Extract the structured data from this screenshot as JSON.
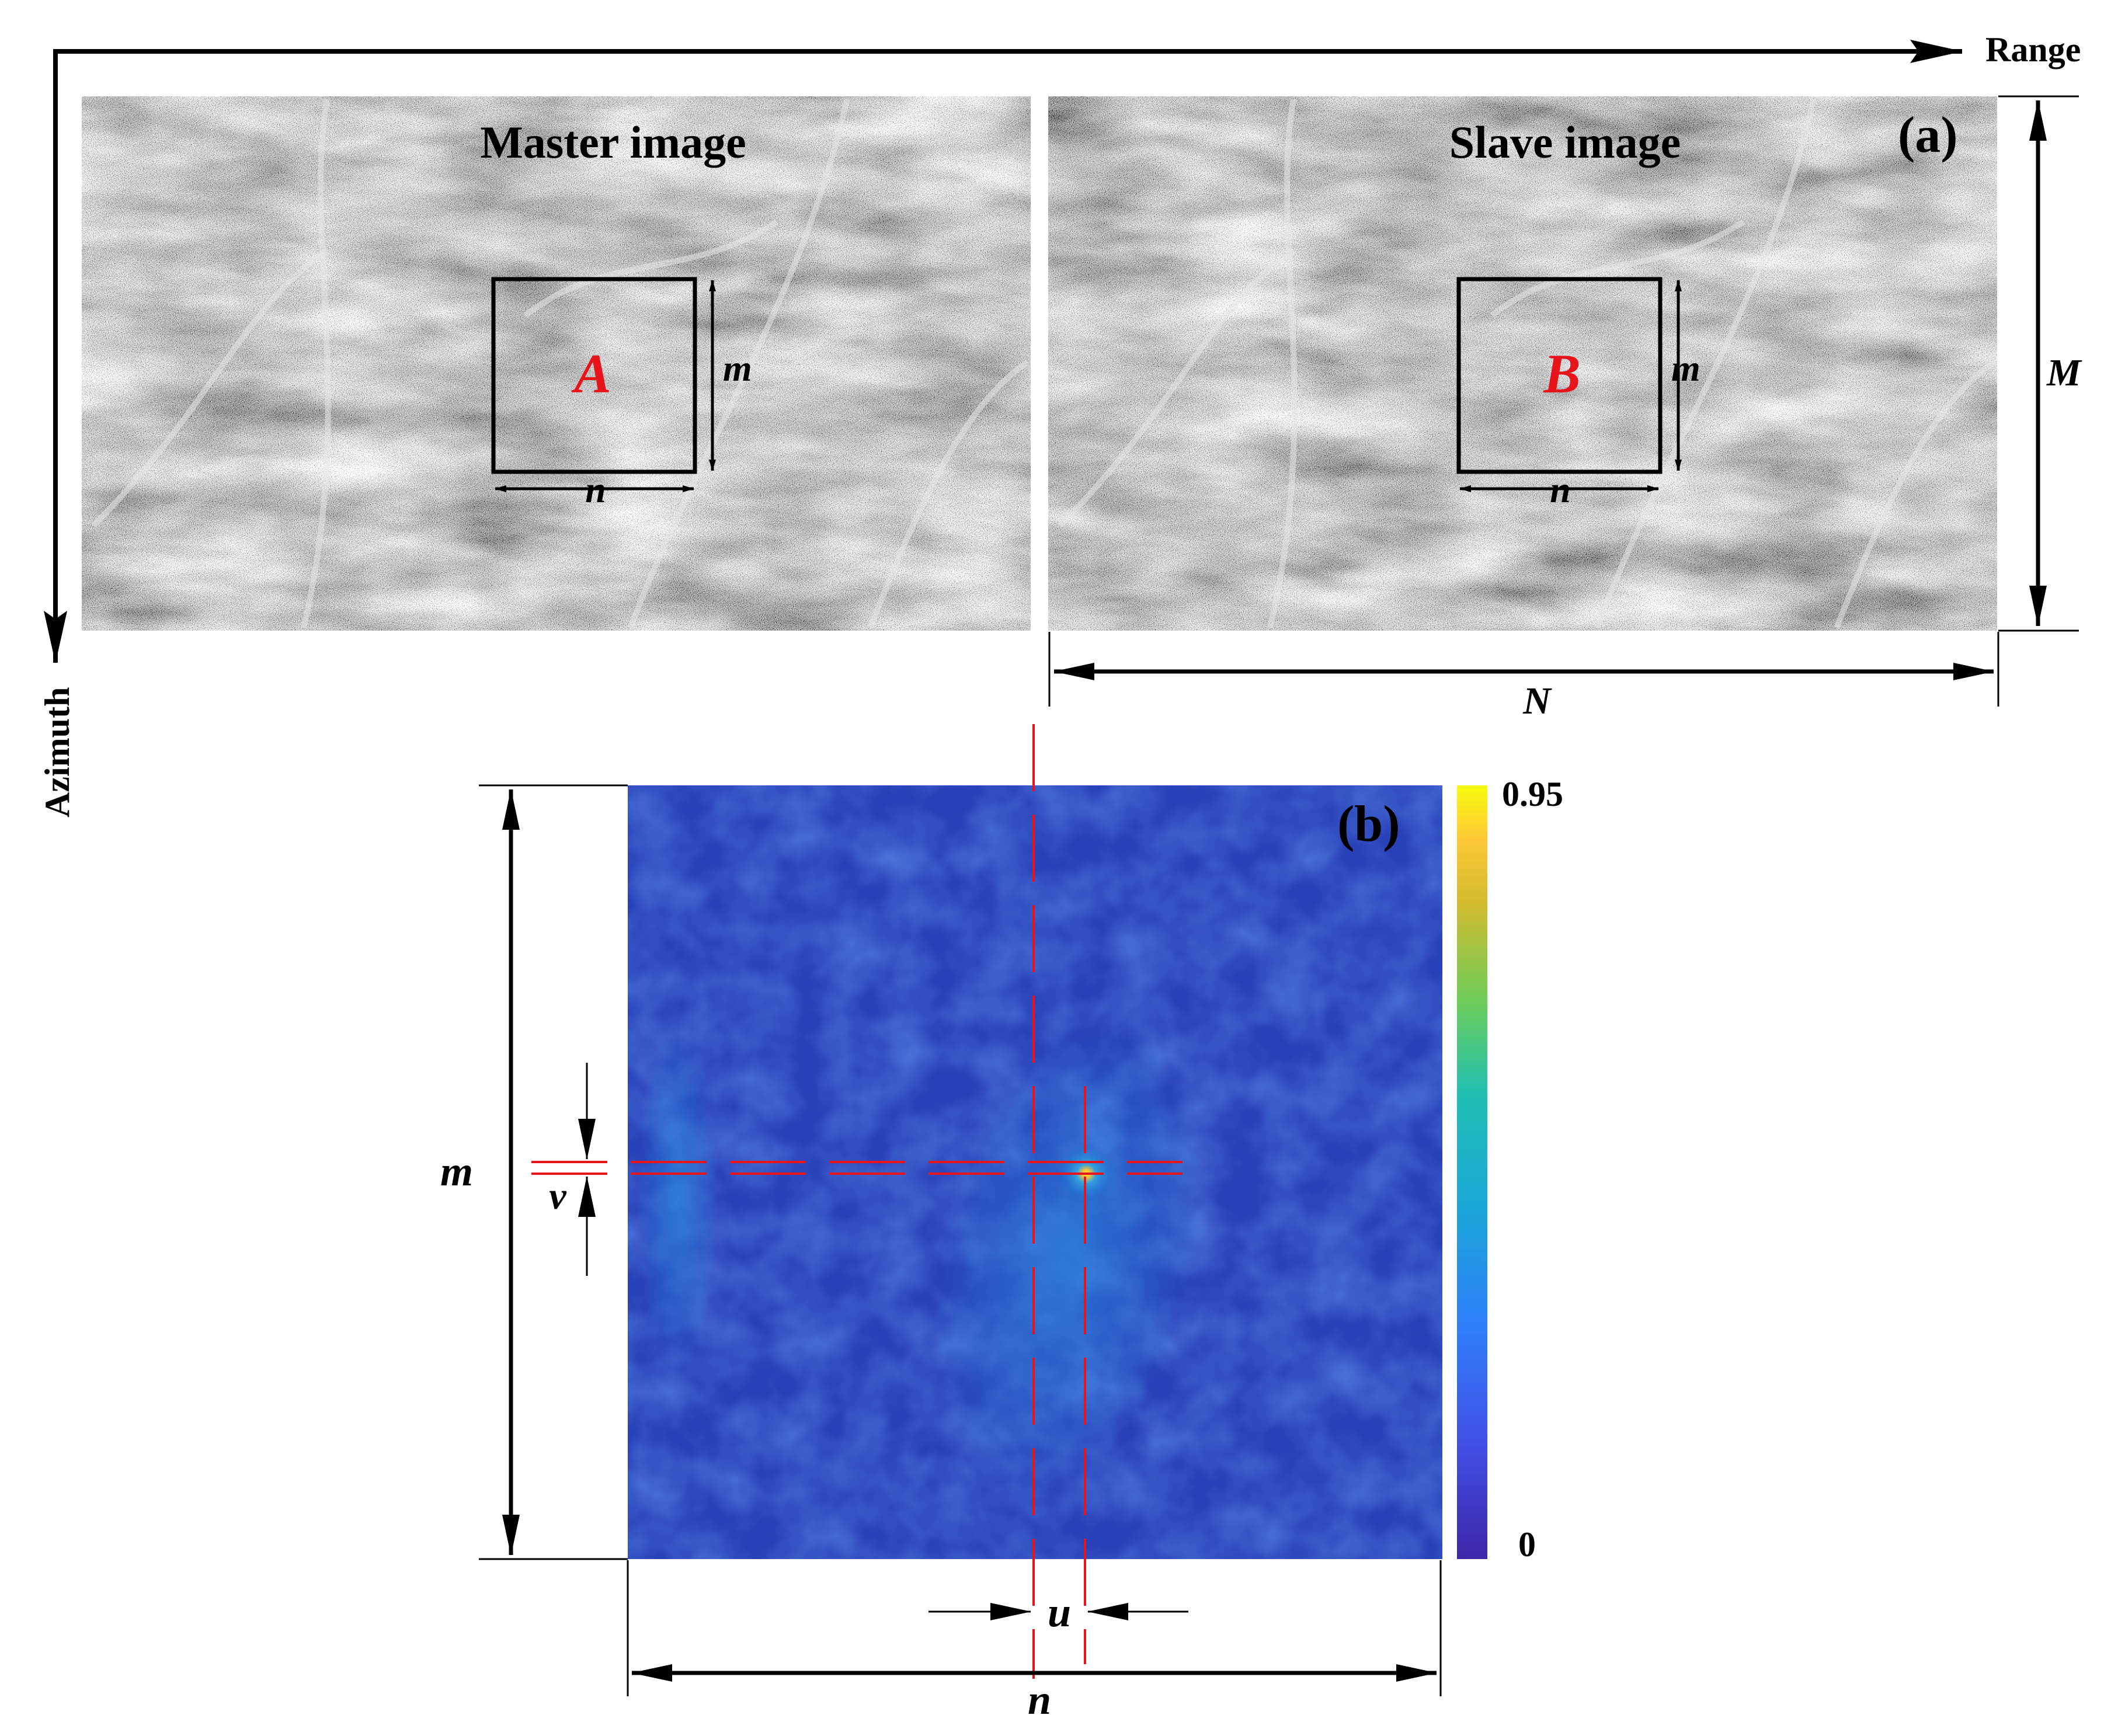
{
  "axes": {
    "range_label": "Range",
    "azimuth_label": "Azimuth"
  },
  "panel_a": {
    "tag": "(a)",
    "master_title": "Master image",
    "slave_title": "Slave image",
    "window_master": "A",
    "window_slave": "B",
    "window_height": "m",
    "window_width": "n",
    "image_height": "M",
    "image_width": "N"
  },
  "panel_b": {
    "tag": "(b)",
    "height_label": "m",
    "width_label": "n",
    "offset_azimuth": "v",
    "offset_range": "u",
    "colorbar_max": "0.95",
    "colorbar_min": "0"
  },
  "colors": {
    "accent_red": "#e8141b",
    "heatmap_low": "#2a2c8c",
    "heatmap_mid": "#1f7fd6",
    "heatmap_high": "#f9f21a",
    "sar_gray": "#8a8a8a"
  }
}
